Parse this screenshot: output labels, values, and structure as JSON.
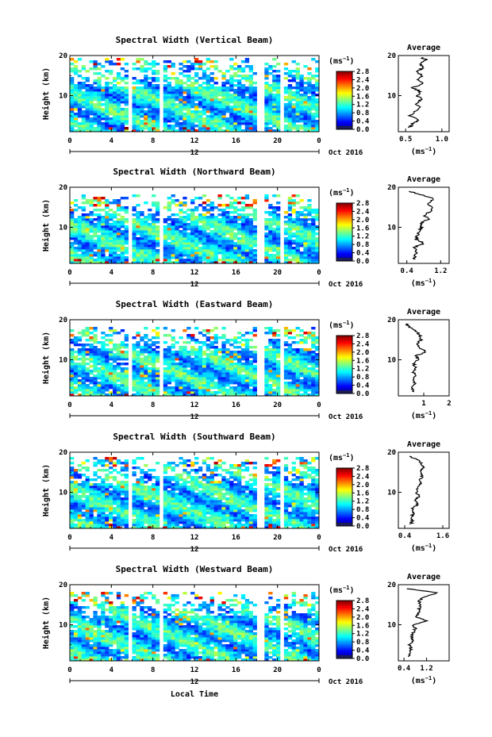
{
  "figure": {
    "x_axis_title": "Local Time",
    "date_label": "Oct 2016",
    "colorbar_unit": "(ms",
    "colorbar_exp": "−1",
    "profile_unit": "(ms",
    "profile_exp": "−1",
    "profile_title": "Average",
    "y_axis_title": "Height (km)"
  },
  "chart_data": [
    {
      "type": "heatmap",
      "title": "Spectral Width (Vertical Beam)",
      "ylabel": "Height (km)",
      "x_ticks": [
        "0",
        "4",
        "8",
        "12",
        "16",
        "20",
        "0"
      ],
      "date_tick": "12",
      "y_ticks": [
        "20",
        "10"
      ],
      "xlim": [
        0,
        24
      ],
      "ylim": [
        1,
        20
      ],
      "data_top_km": 19.5,
      "colorbar": {
        "ticks": [
          "2.8",
          "2.4",
          "2.0",
          "1.6",
          "1.2",
          "0.8",
          "0.4",
          "0.0"
        ],
        "range": [
          0,
          2.8
        ]
      },
      "profile": {
        "xlim": [
          0.4,
          1.1
        ],
        "x_ticks": [
          "0.5",
          "1.0"
        ],
        "x_tick_values": [
          0.5,
          1.0
        ],
        "heights": [
          2,
          3,
          4,
          5,
          6,
          7,
          8,
          9,
          10,
          11,
          12,
          13,
          14,
          15,
          16,
          17,
          18,
          19,
          19.5
        ],
        "values": [
          0.55,
          0.6,
          0.68,
          0.56,
          0.62,
          0.7,
          0.64,
          0.72,
          0.66,
          0.7,
          0.6,
          0.75,
          0.68,
          0.72,
          0.66,
          0.74,
          0.7,
          0.78,
          0.72
        ]
      }
    },
    {
      "type": "heatmap",
      "title": "Spectral Width (Northward Beam)",
      "ylabel": "Height (km)",
      "x_ticks": [
        "0",
        "4",
        "8",
        "12",
        "16",
        "20",
        "0"
      ],
      "date_tick": "12",
      "y_ticks": [
        "20",
        "10"
      ],
      "xlim": [
        0,
        24
      ],
      "ylim": [
        1,
        20
      ],
      "data_top_km": 18,
      "colorbar": {
        "ticks": [
          "2.8",
          "2.4",
          "2.0",
          "1.6",
          "1.2",
          "0.8",
          "0.4",
          "0.0"
        ],
        "range": [
          0,
          2.8
        ]
      },
      "profile": {
        "xlim": [
          0.2,
          1.4
        ],
        "x_ticks": [
          "0.4",
          "1.2"
        ],
        "x_tick_values": [
          0.4,
          1.2
        ],
        "heights": [
          2,
          3,
          4,
          5,
          6,
          7,
          8,
          9,
          10,
          11,
          12,
          13,
          14,
          15,
          16,
          17,
          18,
          19
        ],
        "values": [
          0.55,
          0.6,
          0.62,
          0.58,
          0.8,
          0.62,
          0.65,
          0.7,
          0.75,
          0.72,
          0.9,
          0.82,
          0.95,
          1.0,
          0.88,
          1.05,
          0.8,
          0.45
        ]
      }
    },
    {
      "type": "heatmap",
      "title": "Spectral Width (Eastward Beam)",
      "ylabel": "Height (km)",
      "x_ticks": [
        "0",
        "4",
        "8",
        "12",
        "16",
        "20",
        "0"
      ],
      "date_tick": "12",
      "y_ticks": [
        "20",
        "10"
      ],
      "xlim": [
        0,
        24
      ],
      "ylim": [
        1,
        20
      ],
      "data_top_km": 18.5,
      "colorbar": {
        "ticks": [
          "2.8",
          "2.4",
          "2.0",
          "1.6",
          "1.2",
          "0.8",
          "0.4",
          "0.0"
        ],
        "range": [
          0,
          2.8
        ]
      },
      "profile": {
        "xlim": [
          0,
          2
        ],
        "x_ticks": [
          "1",
          "2"
        ],
        "x_tick_values": [
          1,
          2
        ],
        "heights": [
          2,
          3,
          4,
          5,
          6,
          7,
          8,
          9,
          10,
          11,
          12,
          13,
          14,
          15,
          16,
          17,
          18,
          19
        ],
        "values": [
          0.6,
          0.55,
          0.65,
          0.6,
          0.7,
          0.58,
          0.66,
          0.62,
          0.75,
          0.7,
          1.1,
          0.8,
          0.72,
          0.9,
          0.85,
          0.75,
          0.45,
          0.3
        ]
      }
    },
    {
      "type": "heatmap",
      "title": "Spectral Width (Southward Beam)",
      "ylabel": "Height (km)",
      "x_ticks": [
        "0",
        "4",
        "8",
        "12",
        "16",
        "20",
        "0"
      ],
      "date_tick": "12",
      "y_ticks": [
        "20",
        "10"
      ],
      "xlim": [
        0,
        24
      ],
      "ylim": [
        1,
        20
      ],
      "data_top_km": 19,
      "colorbar": {
        "ticks": [
          "2.8",
          "2.4",
          "2.0",
          "1.6",
          "1.2",
          "0.8",
          "0.4",
          "0.0"
        ],
        "range": [
          0,
          2.8
        ]
      },
      "profile": {
        "xlim": [
          0.2,
          1.8
        ],
        "x_ticks": [
          "0.4",
          "1.6"
        ],
        "x_tick_values": [
          0.4,
          1.6
        ],
        "heights": [
          2,
          3,
          4,
          5,
          6,
          7,
          8,
          9,
          10,
          11,
          12,
          13,
          14,
          15,
          16,
          17,
          18,
          19
        ],
        "values": [
          0.6,
          0.65,
          0.62,
          0.7,
          0.66,
          0.8,
          0.72,
          0.85,
          0.78,
          0.82,
          0.9,
          0.86,
          0.95,
          0.88,
          1.0,
          0.92,
          0.85,
          0.55
        ]
      }
    },
    {
      "type": "heatmap",
      "title": "Spectral Width (Westward Beam)",
      "ylabel": "Height (km)",
      "x_ticks": [
        "0",
        "4",
        "8",
        "12",
        "16",
        "20",
        "0"
      ],
      "date_tick": "12",
      "y_ticks": [
        "20",
        "10"
      ],
      "xlim": [
        0,
        24
      ],
      "ylim": [
        1,
        20
      ],
      "data_top_km": 18,
      "colorbar": {
        "ticks": [
          "2.8",
          "2.4",
          "2.0",
          "1.6",
          "1.2",
          "0.8",
          "0.4",
          "0.0"
        ],
        "range": [
          0,
          2.8
        ]
      },
      "profile": {
        "xlim": [
          0.2,
          2.0
        ],
        "x_ticks": [
          "0.4",
          "1.2"
        ],
        "x_tick_values": [
          0.4,
          1.2
        ],
        "heights": [
          2,
          3,
          4,
          5,
          6,
          7,
          8,
          9,
          10,
          11,
          12,
          13,
          14,
          15,
          16,
          17,
          18,
          19
        ],
        "values": [
          0.6,
          0.62,
          0.65,
          0.6,
          0.7,
          0.66,
          0.72,
          0.8,
          0.75,
          1.2,
          0.85,
          0.9,
          0.95,
          1.0,
          0.92,
          1.15,
          1.6,
          0.5
        ]
      }
    }
  ]
}
